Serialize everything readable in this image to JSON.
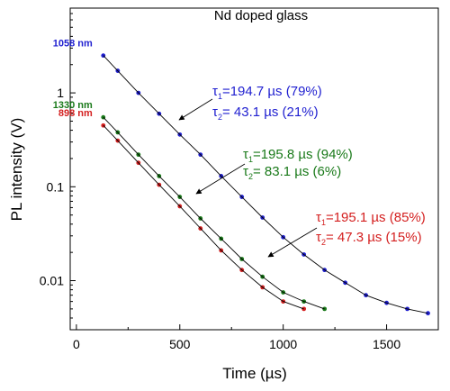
{
  "chart_data": {
    "type": "scatter",
    "title": "Nd doped glass",
    "xlabel": "Time (µs)",
    "ylabel": "PL intensity (V)",
    "xlim": [
      -30,
      1750
    ],
    "ylim": [
      0.003,
      8
    ],
    "yscale": "log",
    "x_ticks": [
      0,
      500,
      1000,
      1500
    ],
    "y_ticks": [
      {
        "value": 0.01,
        "label": "0.01"
      },
      {
        "value": 0.1,
        "label": "0.1"
      },
      {
        "value": 1,
        "label": "1"
      }
    ],
    "grid": false,
    "series": [
      {
        "name": "1058 nm",
        "color": "#1f1fd0",
        "x": [
          130,
          200,
          300,
          400,
          500,
          600,
          700,
          800,
          900,
          1000,
          1100,
          1200,
          1300,
          1400,
          1500,
          1600,
          1700
        ],
        "y": [
          2.5,
          1.72,
          1.0,
          0.6,
          0.36,
          0.22,
          0.13,
          0.078,
          0.047,
          0.029,
          0.019,
          0.013,
          0.0095,
          0.007,
          0.0058,
          0.005,
          0.0045
        ]
      },
      {
        "name": "1330 nm",
        "color": "#1a7a1a",
        "x": [
          130,
          200,
          300,
          400,
          500,
          600,
          700,
          800,
          900,
          1000,
          1100,
          1200
        ],
        "y": [
          0.55,
          0.38,
          0.22,
          0.13,
          0.078,
          0.046,
          0.028,
          0.017,
          0.011,
          0.0075,
          0.006,
          0.005
        ]
      },
      {
        "name": "898 nm",
        "color": "#d42020",
        "x": [
          130,
          200,
          300,
          400,
          500,
          600,
          700,
          800,
          900,
          1000,
          1100
        ],
        "y": [
          0.45,
          0.31,
          0.18,
          0.105,
          0.062,
          0.036,
          0.021,
          0.013,
          0.0085,
          0.006,
          0.005
        ]
      }
    ],
    "annotations": [
      {
        "color": "#1f1fd0",
        "tau1": "=194.7 µs (79%)",
        "tau2": "=  43.1 µs (21%)"
      },
      {
        "color": "#1a7a1a",
        "tau1": "=195.8 µs (94%)",
        "tau2": "=  83.1 µs (6%)"
      },
      {
        "color": "#d42020",
        "tau1": "=195.1 µs (85%)",
        "tau2": "=  47.3 µs (15%)"
      }
    ],
    "tau_symbol": "τ",
    "tau1_sub": "1",
    "tau2_sub": "2"
  }
}
